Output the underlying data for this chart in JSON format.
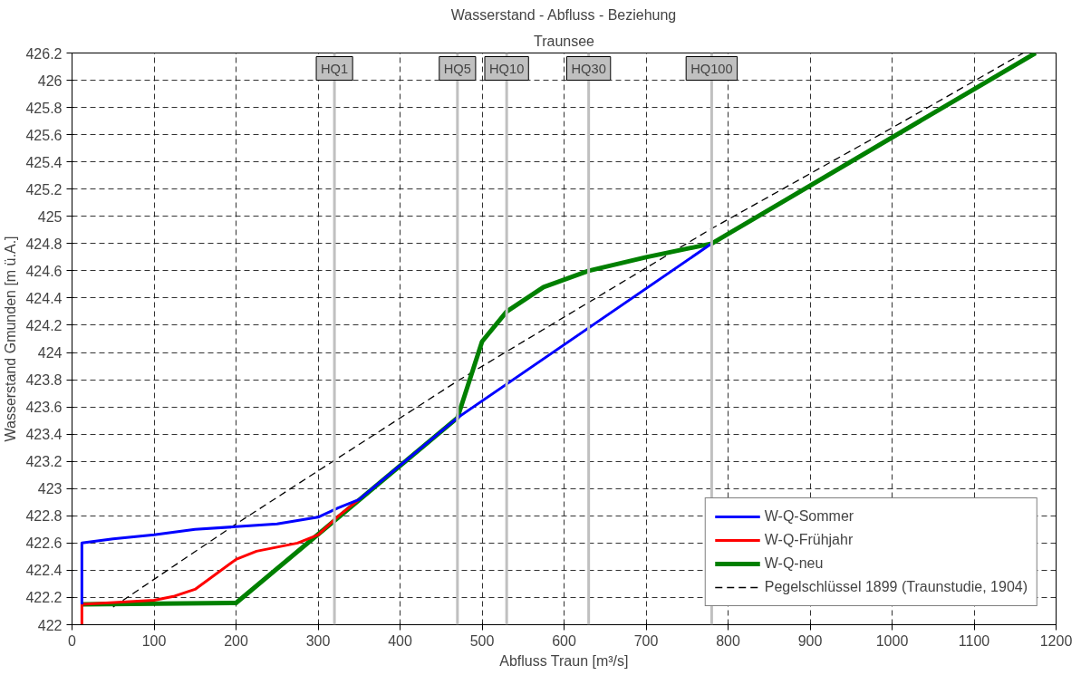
{
  "chart_data": {
    "type": "line",
    "title": "Wasserstand - Abfluss - Beziehung",
    "subtitle": "Traunsee",
    "xlabel": "Abfluss Traun [m³/s]",
    "ylabel": "Wasserstand Gmunden [m ü.A.]",
    "xlim": [
      0,
      1200
    ],
    "ylim": [
      422,
      426.2
    ],
    "xticks": [
      0,
      100,
      200,
      300,
      400,
      500,
      600,
      700,
      800,
      900,
      1000,
      1100,
      1200
    ],
    "yticks": [
      422,
      422.2,
      422.4,
      422.6,
      422.8,
      423,
      423.2,
      423.4,
      423.6,
      423.8,
      424,
      424.2,
      424.4,
      424.6,
      424.8,
      425,
      425.2,
      425.4,
      425.6,
      425.8,
      426,
      426.2
    ],
    "grid": true,
    "legend": "bottom right",
    "series": [
      {
        "name": "W-Q-Sommer",
        "color": "#0000ff",
        "line_style": "solid",
        "x": [
          12,
          12,
          50,
          100,
          150,
          200,
          250,
          300,
          325,
          350,
          470,
          780
        ],
        "values": [
          422.15,
          422.6,
          422.63,
          422.66,
          422.7,
          422.72,
          422.74,
          422.79,
          422.86,
          422.92,
          423.52,
          424.8
        ]
      },
      {
        "name": "W-Q-Frühjahr",
        "color": "#ff0000",
        "line_style": "solid",
        "x": [
          12,
          12,
          100,
          125,
          150,
          200,
          225,
          275,
          300,
          325,
          350
        ],
        "values": [
          422,
          422.15,
          422.18,
          422.21,
          422.26,
          422.48,
          422.54,
          422.6,
          422.66,
          422.8,
          422.92
        ]
      },
      {
        "name": "W-Q-neu",
        "color": "#008000",
        "line_style": "solid",
        "x": [
          12,
          200,
          470,
          500,
          530,
          575,
          630,
          700,
          780,
          1175
        ],
        "values": [
          422.15,
          422.16,
          423.52,
          424.08,
          424.3,
          424.48,
          424.6,
          424.7,
          424.8,
          426.2
        ]
      },
      {
        "name": "Pegelschlüssel 1899 (Traunstudie, 1904)",
        "color": "#000000",
        "line_style": "dashed",
        "x": [
          50,
          200,
          300,
          470,
          780,
          1000,
          1160
        ],
        "values": [
          422.13,
          422.74,
          423.13,
          423.79,
          424.91,
          425.65,
          426.2
        ]
      }
    ],
    "ref_lines": [
      {
        "axis": "x",
        "value": 320,
        "label": "HQ1",
        "color": "#c0c0c0"
      },
      {
        "axis": "x",
        "value": 470,
        "label": "HQ5",
        "color": "#c0c0c0"
      },
      {
        "axis": "x",
        "value": 530,
        "label": "HQ10",
        "color": "#c0c0c0"
      },
      {
        "axis": "x",
        "value": 630,
        "label": "HQ30",
        "color": "#c0c0c0"
      },
      {
        "axis": "x",
        "value": 780,
        "label": "HQ100",
        "color": "#c0c0c0"
      }
    ]
  }
}
